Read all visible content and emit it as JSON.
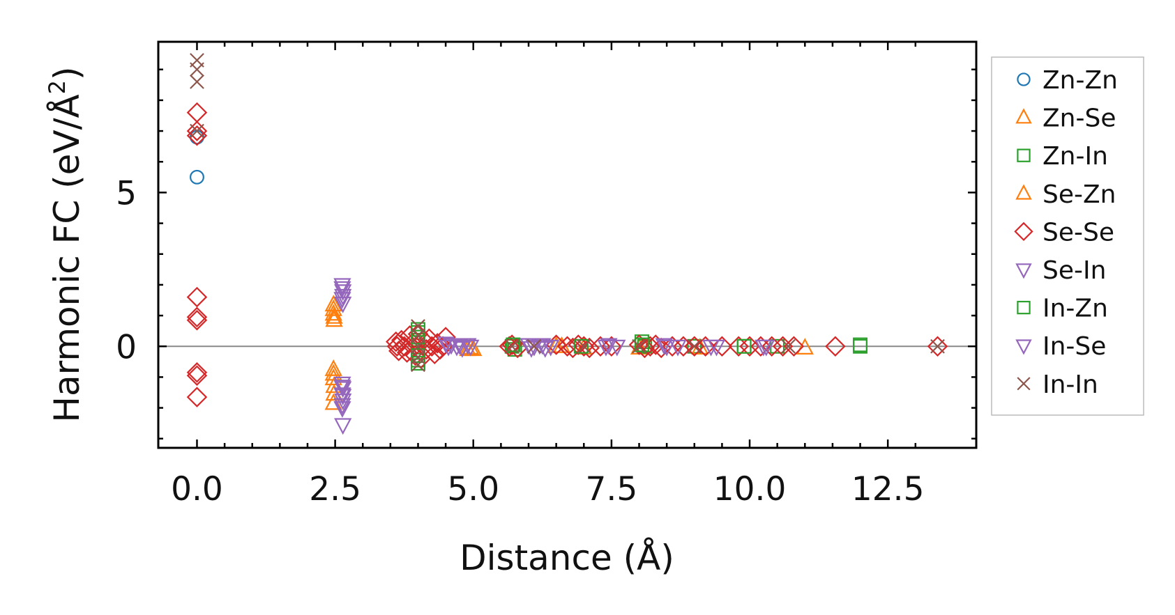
{
  "chart_data": {
    "type": "scatter",
    "xlabel": "Distance (Å)",
    "ylabel_main": "Harmonic FC (eV/Å",
    "ylabel_sup": "2",
    "ylabel_close": ")",
    "xlim": [
      -0.7,
      14.1
    ],
    "ylim": [
      -3.3,
      9.9
    ],
    "xticks": [
      0.0,
      2.5,
      5.0,
      7.5,
      10.0,
      12.5
    ],
    "xtick_labels": [
      "0.0",
      "2.5",
      "5.0",
      "7.5",
      "10.0",
      "12.5"
    ],
    "yticks": [
      0,
      5
    ],
    "ytick_labels": [
      "0",
      "5"
    ],
    "zero_line": true,
    "legend_position": "outside-right",
    "series": [
      {
        "name": "Zn-Zn",
        "marker": "circle",
        "color": "#1f77b4",
        "points": [
          [
            0,
            6.8
          ],
          [
            0,
            5.5
          ]
        ]
      },
      {
        "name": "Zn-Se",
        "marker": "triangle-up",
        "color": "#ff7f0e",
        "points": [
          [
            2.47,
            1.35
          ],
          [
            2.47,
            1.05
          ],
          [
            2.48,
            0.85
          ],
          [
            2.47,
            -0.75
          ],
          [
            2.47,
            -1.05
          ],
          [
            2.48,
            -1.55
          ],
          [
            4.95,
            -0.05
          ],
          [
            5.0,
            -0.1
          ],
          [
            6.6,
            0.0
          ],
          [
            8.0,
            -0.05
          ],
          [
            11.0,
            -0.05
          ]
        ]
      },
      {
        "name": "Zn-In",
        "marker": "square",
        "color": "#2ca02c",
        "points": [
          [
            4.0,
            0.45
          ],
          [
            4.0,
            0.2
          ],
          [
            4.0,
            -0.2
          ],
          [
            4.0,
            -0.45
          ],
          [
            5.7,
            0.0
          ],
          [
            5.75,
            -0.1
          ],
          [
            8.05,
            0.15
          ],
          [
            8.1,
            0.0
          ],
          [
            9.0,
            0.0
          ],
          [
            9.9,
            0.0
          ],
          [
            10.5,
            0.0
          ],
          [
            12.0,
            0.0
          ]
        ]
      },
      {
        "name": "Se-Zn",
        "marker": "triangle-up",
        "color": "#ff7f0e",
        "points": [
          [
            2.47,
            1.2
          ],
          [
            2.48,
            0.95
          ],
          [
            2.47,
            -0.9
          ],
          [
            2.48,
            -1.3
          ],
          [
            2.47,
            -1.85
          ],
          [
            4.9,
            -0.1
          ],
          [
            6.5,
            0.0
          ],
          [
            7.0,
            -0.05
          ],
          [
            9.1,
            -0.05
          ]
        ]
      },
      {
        "name": "Se-Se",
        "marker": "diamond",
        "color": "#d62728",
        "points": [
          [
            0,
            7.6
          ],
          [
            0,
            7.0
          ],
          [
            0,
            6.85
          ],
          [
            0,
            1.6
          ],
          [
            0,
            0.95
          ],
          [
            0,
            0.85
          ],
          [
            0,
            -0.85
          ],
          [
            0,
            -0.95
          ],
          [
            0,
            -1.65
          ],
          [
            3.6,
            0.15
          ],
          [
            3.62,
            0.0
          ],
          [
            3.65,
            -0.15
          ],
          [
            3.7,
            0.2
          ],
          [
            3.75,
            0.0
          ],
          [
            3.8,
            -0.2
          ],
          [
            3.85,
            0.35
          ],
          [
            3.9,
            0.1
          ],
          [
            3.95,
            -0.3
          ],
          [
            4.0,
            0.4
          ],
          [
            4.05,
            -0.4
          ],
          [
            4.1,
            0.2
          ],
          [
            4.15,
            -0.1
          ],
          [
            4.2,
            0.25
          ],
          [
            4.25,
            0.0
          ],
          [
            4.3,
            -0.25
          ],
          [
            4.35,
            0.1
          ],
          [
            4.4,
            -0.1
          ],
          [
            4.45,
            0.0
          ],
          [
            4.5,
            0.3
          ],
          [
            5.65,
            0.0
          ],
          [
            5.7,
            0.05
          ],
          [
            5.8,
            -0.05
          ],
          [
            6.5,
            0.05
          ],
          [
            6.7,
            0.0
          ],
          [
            6.8,
            -0.05
          ],
          [
            6.9,
            0.05
          ],
          [
            7.0,
            0.0
          ],
          [
            7.1,
            -0.05
          ],
          [
            7.3,
            0.0
          ],
          [
            7.5,
            0.0
          ],
          [
            8.0,
            0.05
          ],
          [
            8.1,
            -0.05
          ],
          [
            8.2,
            0.0
          ],
          [
            8.3,
            0.05
          ],
          [
            8.4,
            -0.05
          ],
          [
            8.6,
            0.0
          ],
          [
            8.8,
            0.0
          ],
          [
            9.0,
            0.0
          ],
          [
            9.2,
            0.0
          ],
          [
            9.5,
            0.0
          ],
          [
            9.8,
            0.0
          ],
          [
            10.0,
            0.0
          ],
          [
            10.2,
            0.0
          ],
          [
            10.4,
            0.0
          ],
          [
            10.6,
            0.0
          ],
          [
            10.8,
            0.0
          ],
          [
            11.55,
            0.0
          ],
          [
            13.4,
            0.0
          ]
        ]
      },
      {
        "name": "Se-In",
        "marker": "triangle-down",
        "color": "#9467bd",
        "points": [
          [
            2.63,
            2.0
          ],
          [
            2.64,
            1.8
          ],
          [
            2.63,
            1.55
          ],
          [
            2.64,
            1.4
          ],
          [
            2.63,
            -1.2
          ],
          [
            2.64,
            -1.35
          ],
          [
            2.63,
            -1.55
          ],
          [
            2.64,
            -1.75
          ],
          [
            2.63,
            -2.0
          ],
          [
            2.64,
            -2.55
          ],
          [
            4.5,
            0.1
          ],
          [
            4.6,
            0.05
          ],
          [
            4.7,
            0.0
          ],
          [
            4.8,
            -0.05
          ],
          [
            4.9,
            0.05
          ],
          [
            6.0,
            0.05
          ],
          [
            6.1,
            0.0
          ],
          [
            6.2,
            0.05
          ],
          [
            6.3,
            -0.05
          ],
          [
            6.4,
            0.0
          ],
          [
            7.4,
            0.0
          ],
          [
            7.6,
            0.0
          ],
          [
            8.5,
            0.0
          ],
          [
            8.7,
            0.0
          ],
          [
            9.3,
            0.0
          ],
          [
            10.3,
            0.0
          ]
        ]
      },
      {
        "name": "In-Zn",
        "marker": "square",
        "color": "#2ca02c",
        "points": [
          [
            4.0,
            0.55
          ],
          [
            4.0,
            0.3
          ],
          [
            4.0,
            -0.3
          ],
          [
            4.0,
            -0.55
          ],
          [
            5.72,
            0.05
          ],
          [
            6.95,
            0.0
          ],
          [
            8.05,
            0.05
          ],
          [
            9.9,
            0.0
          ],
          [
            12.0,
            0.05
          ]
        ]
      },
      {
        "name": "In-Se",
        "marker": "triangle-down",
        "color": "#9467bd",
        "points": [
          [
            2.63,
            1.9
          ],
          [
            2.64,
            1.65
          ],
          [
            2.63,
            -1.3
          ],
          [
            2.64,
            -1.6
          ],
          [
            2.63,
            -1.9
          ],
          [
            4.55,
            0.0
          ],
          [
            4.75,
            0.05
          ],
          [
            4.95,
            0.0
          ],
          [
            6.05,
            -0.05
          ],
          [
            6.25,
            0.05
          ],
          [
            7.45,
            0.05
          ],
          [
            8.45,
            0.05
          ],
          [
            9.4,
            0.0
          ],
          [
            10.25,
            0.0
          ]
        ]
      },
      {
        "name": "In-In",
        "marker": "x",
        "color": "#8c564b",
        "points": [
          [
            0,
            9.3
          ],
          [
            0,
            9.0
          ],
          [
            0,
            8.6
          ],
          [
            0,
            7.0
          ],
          [
            4.0,
            0.65
          ],
          [
            4.0,
            0.35
          ],
          [
            4.0,
            0.0
          ],
          [
            4.0,
            -0.35
          ],
          [
            4.0,
            -0.6
          ],
          [
            5.7,
            0.0
          ],
          [
            6.1,
            0.0
          ],
          [
            7.0,
            0.0
          ],
          [
            8.0,
            0.0
          ],
          [
            9.0,
            0.0
          ],
          [
            10.7,
            0.0
          ],
          [
            13.4,
            0.0
          ]
        ]
      }
    ]
  }
}
